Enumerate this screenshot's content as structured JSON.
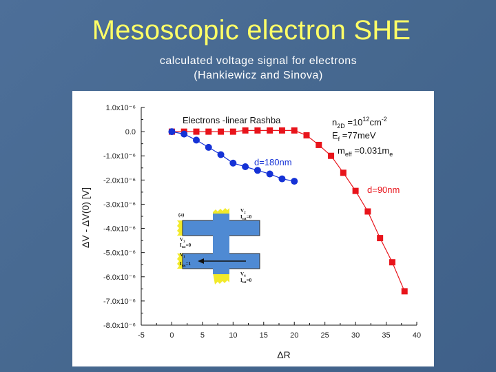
{
  "slide": {
    "title": "Mesoscopic electron SHE",
    "subtitle_line1": "calculated voltage signal for electrons",
    "subtitle_line2": "(Hankiewicz and Sinova)"
  },
  "chart_data": {
    "type": "scatter",
    "title": "Electrons -linear Rashba",
    "xlabel": "ΔR",
    "ylabel": "ΔV - ΔV(0)  [V]",
    "xlim": [
      -5,
      40
    ],
    "ylim": [
      -8e-06,
      1e-06
    ],
    "x_ticks": [
      -5,
      0,
      5,
      10,
      15,
      20,
      25,
      30,
      35,
      40
    ],
    "y_ticks": [
      {
        "v": 1e-06,
        "label": "1.0x10⁻⁶"
      },
      {
        "v": 0.0,
        "label": "0.0"
      },
      {
        "v": -1e-06,
        "label": "-1.0x10⁻⁶"
      },
      {
        "v": -2e-06,
        "label": "-2.0x10⁻⁶"
      },
      {
        "v": -3e-06,
        "label": "-3.0x10⁻⁶"
      },
      {
        "v": -4e-06,
        "label": "-4.0x10⁻⁶"
      },
      {
        "v": -5e-06,
        "label": "-5.0x10⁻⁶"
      },
      {
        "v": -6e-06,
        "label": "-6.0x10⁻⁶"
      },
      {
        "v": -7e-06,
        "label": "-7.0x10⁻⁶"
      },
      {
        "v": -8e-06,
        "label": "-8.0x10⁻⁶"
      }
    ],
    "grid": false,
    "series": [
      {
        "name": "d=90nm",
        "color": "#e8141b",
        "marker": "square",
        "x": [
          0,
          2,
          4,
          6,
          8,
          10,
          12,
          14,
          16,
          18,
          20,
          22,
          24,
          26,
          28,
          30,
          32,
          34,
          36,
          38
        ],
        "y": [
          0.0,
          0.0,
          0.0,
          0.0,
          0.0,
          0.0,
          5e-08,
          5e-08,
          5e-08,
          5e-08,
          5e-08,
          -1.5e-07,
          -5.5e-07,
          -1e-06,
          -1.7e-06,
          -2.45e-06,
          -3.3e-06,
          -4.4e-06,
          -5.4e-06,
          -6.6e-06
        ]
      },
      {
        "name": "d=180nm",
        "color": "#1532d6",
        "marker": "circle",
        "x": [
          0,
          2,
          4,
          6,
          8,
          10,
          12,
          14,
          16,
          18,
          20
        ],
        "y": [
          0.0,
          -1e-07,
          -3.5e-07,
          -6.5e-07,
          -9.5e-07,
          -1.3e-06,
          -1.45e-06,
          -1.6e-06,
          -1.75e-06,
          -1.95e-06,
          -2.05e-06
        ]
      }
    ],
    "annotations": [
      {
        "id": "nd",
        "parts": [
          "n",
          "2D",
          " =10",
          "12",
          "cm",
          "-2"
        ]
      },
      {
        "id": "ef",
        "parts": [
          "E",
          "f",
          " =77meV"
        ]
      },
      {
        "id": "meff",
        "parts": [
          "m",
          "eff",
          " =0.031m",
          "e"
        ]
      }
    ]
  },
  "inset": {
    "panel_label": "(a)",
    "top_right": [
      "V",
      "2",
      "I",
      "tot",
      "=0"
    ],
    "left_upper_v": [
      "V",
      "3"
    ],
    "left_upper_i": [
      "I",
      "tot",
      "=0"
    ],
    "left_lower_v": [
      "V",
      "1"
    ],
    "left_lower_i": [
      "I",
      "tot",
      "=1"
    ],
    "bottom_right": [
      "V",
      "4",
      "I",
      "tot",
      "=0"
    ]
  }
}
